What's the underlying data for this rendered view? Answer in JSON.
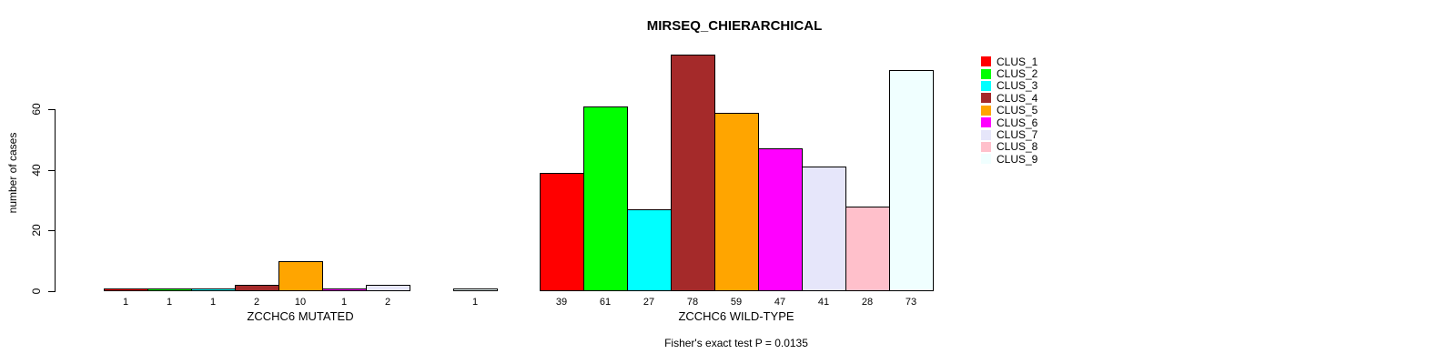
{
  "chart_data": {
    "type": "bar",
    "title": "MIRSEQ_CHIERARCHICAL",
    "ylabel": "number of cases",
    "xlabel": "",
    "ylim": [
      0,
      60
    ],
    "yticks": [
      0,
      20,
      40,
      60
    ],
    "grid": false,
    "legend_position": "right-top",
    "clusters": [
      {
        "name": "CLUS_1",
        "color": "#FF0000"
      },
      {
        "name": "CLUS_2",
        "color": "#00FF00"
      },
      {
        "name": "CLUS_3",
        "color": "#00FFFF"
      },
      {
        "name": "CLUS_4",
        "color": "#A52A2A"
      },
      {
        "name": "CLUS_5",
        "color": "#FFA500"
      },
      {
        "name": "CLUS_6",
        "color": "#FF00FF"
      },
      {
        "name": "CLUS_7",
        "color": "#E6E6FA"
      },
      {
        "name": "CLUS_8",
        "color": "#FFC0CB"
      },
      {
        "name": "CLUS_9",
        "color": "#F0FFFF"
      }
    ],
    "groups": [
      {
        "label": "ZCCHC6 MUTATED",
        "values": [
          1,
          1,
          1,
          2,
          10,
          1,
          2,
          0,
          1
        ]
      },
      {
        "label": "ZCCHC6 WILD-TYPE",
        "values": [
          39,
          61,
          27,
          78,
          59,
          47,
          41,
          28,
          73
        ]
      }
    ],
    "footnote": "Fisher's exact test P = 0.0135",
    "colors": {
      "axis": "#000000",
      "bar_border": "#000000",
      "background": "#FFFFFF"
    }
  }
}
